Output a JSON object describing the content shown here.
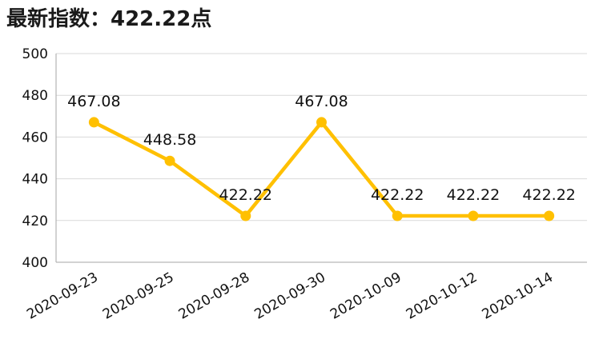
{
  "header": {
    "title": "最新指数：422.22点"
  },
  "chart_data": {
    "type": "line",
    "categories": [
      "2020-09-23",
      "2020-09-25",
      "2020-09-28",
      "2020-09-30",
      "2020-10-09",
      "2020-10-12",
      "2020-10-14"
    ],
    "series": [
      {
        "values": [
          467.08,
          448.58,
          422.22,
          467.08,
          422.22,
          422.22,
          422.22
        ],
        "labels": [
          "467.08",
          "448.58",
          "422.22",
          "467.08",
          "422.22",
          "422.22",
          "422.22"
        ]
      }
    ],
    "ylim": [
      400,
      500
    ],
    "yticks": [
      400,
      420,
      440,
      460,
      480,
      500
    ],
    "grid": true,
    "legend": "none",
    "colors": {
      "line": "#FFC000",
      "grid": "#d9d9d9",
      "axis": "#a6a6a6"
    }
  }
}
